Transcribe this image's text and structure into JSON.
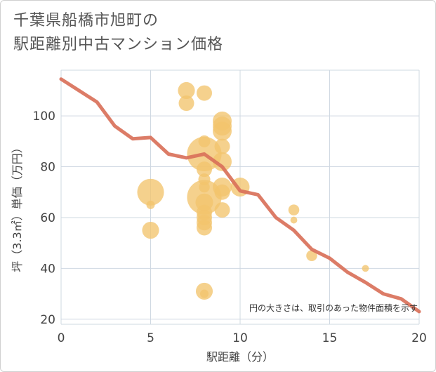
{
  "title_line1": "千葉県船橋市旭町の",
  "title_line2": "駅距離別中古マンション価格",
  "chart_data": {
    "type": "scatter",
    "xlabel": "駅距離（分）",
    "ylabel": "坪（3.3㎡）単価（万円）",
    "xlim": [
      0,
      20
    ],
    "ylim": [
      18,
      118
    ],
    "xticks": [
      0,
      5,
      10,
      15,
      20
    ],
    "yticks": [
      20,
      40,
      60,
      80,
      100
    ],
    "grid": true,
    "note": "円の大きさは、取引のあった物件面積を示す",
    "colors": {
      "bubble": "#f2c46d",
      "line": "#d9715a",
      "grid": "#cfd8e2"
    },
    "bubbles": [
      {
        "x": 5,
        "y": 70,
        "size": 3
      },
      {
        "x": 5,
        "y": 65,
        "size": 0.3
      },
      {
        "x": 5,
        "y": 55,
        "size": 1.2
      },
      {
        "x": 7,
        "y": 110,
        "size": 1.2
      },
      {
        "x": 7,
        "y": 105,
        "size": 1
      },
      {
        "x": 8,
        "y": 109,
        "size": 1
      },
      {
        "x": 8,
        "y": 90,
        "size": 0.6
      },
      {
        "x": 8,
        "y": 85,
        "size": 5
      },
      {
        "x": 8,
        "y": 79,
        "size": 1
      },
      {
        "x": 8,
        "y": 75,
        "size": 0.6
      },
      {
        "x": 8,
        "y": 72,
        "size": 0.5
      },
      {
        "x": 8,
        "y": 68,
        "size": 5
      },
      {
        "x": 8,
        "y": 66,
        "size": 1.3
      },
      {
        "x": 8,
        "y": 62,
        "size": 1
      },
      {
        "x": 8,
        "y": 60,
        "size": 1
      },
      {
        "x": 8,
        "y": 58,
        "size": 1
      },
      {
        "x": 8,
        "y": 56,
        "size": 1
      },
      {
        "x": 8,
        "y": 31,
        "size": 1.2
      },
      {
        "x": 8,
        "y": 30,
        "size": 0.3
      },
      {
        "x": 9,
        "y": 98,
        "size": 1.5
      },
      {
        "x": 9,
        "y": 96,
        "size": 1.5
      },
      {
        "x": 9,
        "y": 94,
        "size": 1.5
      },
      {
        "x": 9,
        "y": 88,
        "size": 1
      },
      {
        "x": 9,
        "y": 82,
        "size": 1.5
      },
      {
        "x": 9,
        "y": 72,
        "size": 1.5
      },
      {
        "x": 9,
        "y": 70,
        "size": 1
      },
      {
        "x": 9,
        "y": 63,
        "size": 1
      },
      {
        "x": 10,
        "y": 72,
        "size": 1.5
      },
      {
        "x": 13,
        "y": 63,
        "size": 0.5
      },
      {
        "x": 13,
        "y": 59,
        "size": 0.2
      },
      {
        "x": 14,
        "y": 45,
        "size": 0.5
      },
      {
        "x": 17,
        "y": 40,
        "size": 0.2
      }
    ],
    "trend": {
      "x": [
        0,
        1,
        2,
        3,
        4,
        5,
        6,
        7,
        8,
        9,
        10,
        11,
        12,
        13,
        14,
        15,
        16,
        17,
        18,
        19,
        20
      ],
      "y": [
        114.5,
        110,
        105.5,
        96,
        91,
        91.5,
        85,
        83.5,
        85,
        80,
        70.5,
        69,
        60,
        55,
        47.5,
        44,
        38.5,
        34.5,
        30,
        28,
        23
      ]
    }
  }
}
